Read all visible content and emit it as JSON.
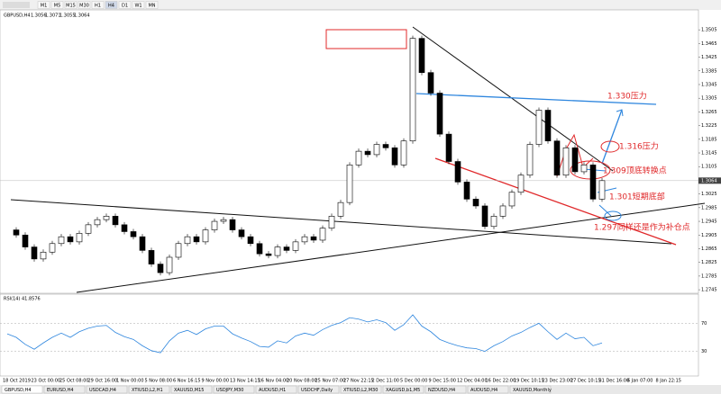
{
  "toolbar": {
    "timeframes": [
      "M1",
      "M5",
      "M15",
      "M30",
      "H1",
      "H4",
      "D1",
      "W1",
      "MN"
    ]
  },
  "chart_data": {
    "type": "candlestick",
    "title": "GBPUSD,H4",
    "ohlc": [
      1.3056,
      1.3071,
      1.3055,
      1.3064
    ],
    "closes": [
      1.292,
      1.2905,
      1.287,
      1.2835,
      1.2855,
      1.288,
      1.29,
      1.2885,
      1.291,
      1.2935,
      1.295,
      1.296,
      1.2935,
      1.2915,
      1.29,
      1.286,
      1.282,
      1.2795,
      1.284,
      1.288,
      1.29,
      1.2885,
      1.292,
      1.2945,
      1.295,
      1.292,
      1.29,
      1.288,
      1.285,
      1.2845,
      1.287,
      1.286,
      1.2885,
      1.29,
      1.289,
      1.2925,
      1.296,
      1.3,
      1.311,
      1.315,
      1.314,
      1.317,
      1.316,
      1.311,
      1.318,
      1.348,
      1.338,
      1.332,
      1.32,
      1.312,
      1.306,
      1.301,
      1.299,
      1.293,
      1.296,
      1.299,
      1.303,
      1.308,
      1.317,
      1.327,
      1.318,
      1.308,
      1.316,
      1.309,
      1.311,
      1.301,
      1.3064
    ],
    "current_price": 1.3064,
    "ylim": [
      1.274,
      1.3558
    ],
    "yticks": [
      1.3505,
      1.3465,
      1.3425,
      1.3385,
      1.3345,
      1.3305,
      1.3265,
      1.3225,
      1.3185,
      1.3145,
      1.3105,
      1.3025,
      1.2985,
      1.2945,
      1.2905,
      1.2865,
      1.2825,
      1.2785,
      1.2745
    ],
    "x_labels": [
      "18 Oct 2019",
      "23 Oct 00:00",
      "25 Oct 08:00",
      "29 Oct 16:00",
      "1 Nov 00:00",
      "5 Nov 08:00",
      "6 Nov 16:15",
      "9 Nov 00:00",
      "13 Nov 14:15",
      "16 Nov 04:00",
      "20 Nov 08:00",
      "25 Nov 07:00",
      "27 Nov 22:15",
      "2 Dec 11:00",
      "5 Dec 00:00",
      "9 Dec 15:00",
      "12 Dec 04:00",
      "16 Dec 22:00",
      "19 Dec 10:15",
      "23 Dec 23:00",
      "27 Dec 10:15",
      "31 Dec 16:00",
      "6 Jan 07:00",
      "8 Jan 22:15"
    ],
    "annotations": [
      "1.330压力",
      "1.316压力",
      "1.309顶底转换点",
      "1.301短期底部",
      "1.297同样还是作为补仓点"
    ]
  },
  "rsi": {
    "label": "RSI(14)",
    "current": 41.8576,
    "ylim": [
      0,
      100
    ],
    "yticks": [
      70,
      30
    ],
    "values": [
      55,
      50,
      40,
      33,
      42,
      50,
      56,
      50,
      58,
      63,
      66,
      67,
      57,
      51,
      47,
      38,
      31,
      28,
      45,
      56,
      60,
      54,
      62,
      66,
      66,
      55,
      49,
      44,
      37,
      36,
      45,
      42,
      52,
      56,
      53,
      61,
      67,
      71,
      78,
      76,
      72,
      75,
      71,
      60,
      68,
      82,
      66,
      58,
      47,
      42,
      38,
      35,
      34,
      30,
      38,
      44,
      52,
      57,
      64,
      70,
      58,
      47,
      56,
      48,
      50,
      38,
      42
    ]
  },
  "tabs": [
    "GBPUSD,H4",
    "EURUSD,H4",
    "USDCAD,H4",
    "XTIUSD,L2,H1",
    "XAUUSD,M15",
    "USDJPY,M30",
    "AUDUSD,H1",
    "USDCHF,Daily",
    "XTIUSD,L2,M30",
    "XAGUSD,b1,M5",
    "NZDUSD,H4",
    "AUDUSD,H4",
    "XAUUSD,Monthly"
  ]
}
